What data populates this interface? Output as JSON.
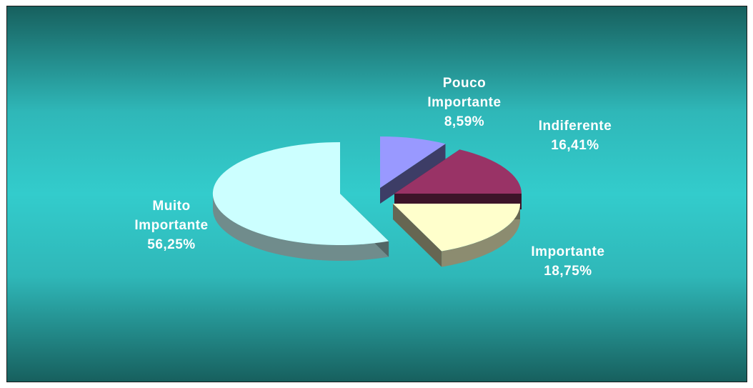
{
  "chart_data": {
    "type": "pie",
    "title": "",
    "slices": [
      {
        "name": "Pouco Importante",
        "label_lines": [
          "Pouco",
          "Importante"
        ],
        "value_text": "8,59%",
        "value": 8.59,
        "color": "#9999ff",
        "exploded": true
      },
      {
        "name": "Indiferente",
        "label_lines": [
          "Indiferente"
        ],
        "value_text": "16,41%",
        "value": 16.41,
        "color": "#993366",
        "exploded": true
      },
      {
        "name": "Importante",
        "label_lines": [
          "Importante"
        ],
        "value_text": "18,75%",
        "value": 18.75,
        "color": "#ffffcc",
        "exploded": true
      },
      {
        "name": "Muito Importante",
        "label_lines": [
          "Muito",
          "Importante"
        ],
        "value_text": "56,25%",
        "value": 56.25,
        "color": "#ccffff",
        "exploded": true
      }
    ],
    "style": "3d-exploded",
    "legend": "none"
  },
  "colors": {
    "background_edge": "#17605e",
    "background_center": "#33cccc",
    "label_text": "#ffffff"
  }
}
